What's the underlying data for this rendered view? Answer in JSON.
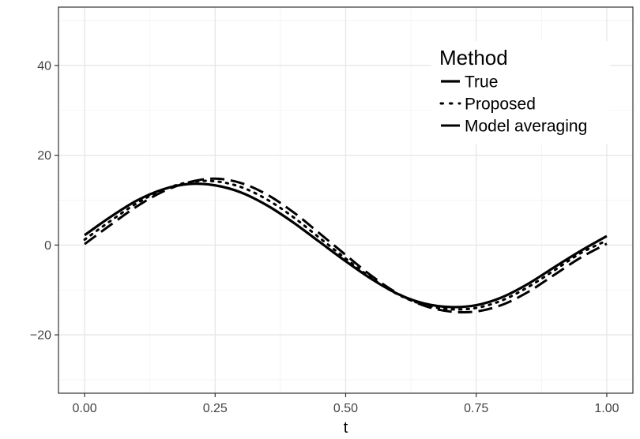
{
  "chart_data": {
    "type": "line",
    "xlabel": "t",
    "ylabel": "",
    "xlim": [
      -0.05,
      1.05
    ],
    "ylim": [
      -33,
      53
    ],
    "x_ticks": [
      0.0,
      0.25,
      0.5,
      0.75,
      1.0
    ],
    "x_tick_labels": [
      "0.00",
      "0.25",
      "0.50",
      "0.75",
      "1.00"
    ],
    "y_ticks": [
      -20,
      0,
      20,
      40
    ],
    "y_tick_labels": [
      "−20",
      "0",
      "20",
      "40"
    ],
    "grid": true,
    "legend": {
      "title": "Method",
      "position": "top-right",
      "entries": [
        "True",
        "Proposed",
        "Model averaging"
      ]
    },
    "series": [
      {
        "name": "True",
        "line_style": "solid",
        "x": [
          0.0,
          0.05,
          0.1,
          0.15,
          0.2,
          0.25,
          0.3,
          0.35,
          0.4,
          0.45,
          0.5,
          0.55,
          0.6,
          0.65,
          0.7,
          0.75,
          0.8,
          0.85,
          0.9,
          0.95,
          1.0
        ],
        "y": [
          2.2,
          6.3,
          9.9,
          12.4,
          13.6,
          13.3,
          11.7,
          8.8,
          5.0,
          0.7,
          -3.6,
          -7.6,
          -10.9,
          -13.0,
          -13.8,
          -13.4,
          -11.6,
          -8.6,
          -4.9,
          -1.3,
          2.0
        ]
      },
      {
        "name": "Proposed",
        "line_style": "dotted",
        "x": [
          0.0,
          0.05,
          0.1,
          0.15,
          0.2,
          0.25,
          0.3,
          0.35,
          0.4,
          0.45,
          0.5,
          0.55,
          0.6,
          0.65,
          0.7,
          0.75,
          0.8,
          0.85,
          0.9,
          0.95,
          1.0
        ],
        "y": [
          1.2,
          5.4,
          9.3,
          12.3,
          14.0,
          14.2,
          12.9,
          10.1,
          6.2,
          1.6,
          -3.0,
          -7.4,
          -11.0,
          -13.3,
          -14.3,
          -14.0,
          -12.3,
          -9.3,
          -5.6,
          -1.8,
          1.0
        ]
      },
      {
        "name": "Model averaging",
        "line_style": "longdash",
        "x": [
          0.0,
          0.05,
          0.1,
          0.15,
          0.2,
          0.25,
          0.3,
          0.35,
          0.4,
          0.45,
          0.5,
          0.55,
          0.6,
          0.65,
          0.7,
          0.75,
          0.8,
          0.85,
          0.9,
          0.95,
          1.0
        ],
        "y": [
          0.2,
          4.5,
          8.6,
          11.9,
          14.0,
          14.8,
          13.8,
          11.2,
          7.3,
          2.6,
          -2.2,
          -6.9,
          -10.8,
          -13.5,
          -14.8,
          -14.8,
          -13.3,
          -10.4,
          -6.6,
          -2.8,
          0.3
        ]
      }
    ]
  }
}
